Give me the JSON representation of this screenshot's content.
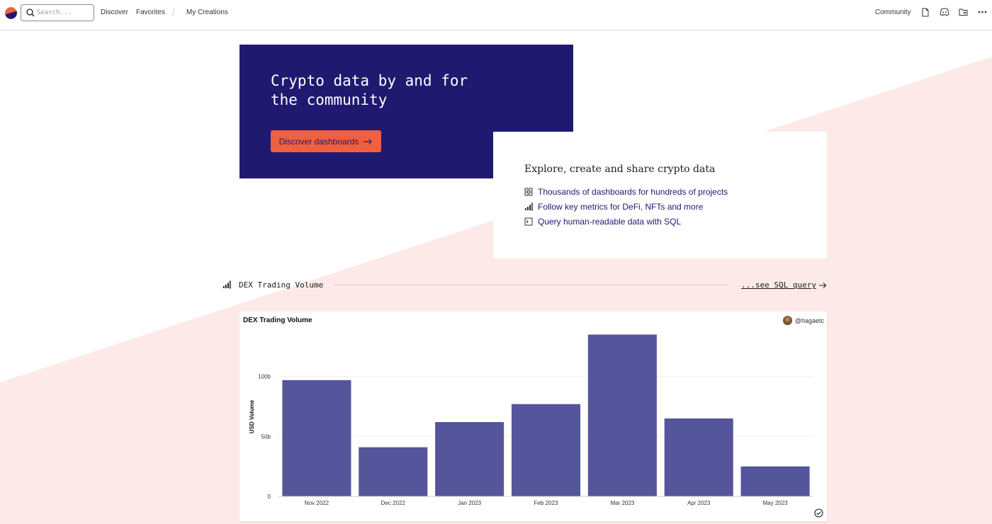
{
  "nav": {
    "search_placeholder": "Search...",
    "links": [
      "Discover",
      "Favorites",
      "My Creations"
    ],
    "community": "Community"
  },
  "hero": {
    "title": "Crypto data by and for the community",
    "button_label": "Discover dashboards"
  },
  "explore": {
    "title": "Explore, create and share crypto data",
    "features": [
      {
        "icon": "grid-icon",
        "label": "Thousands of dashboards for hundreds of projects"
      },
      {
        "icon": "bar-chart-icon",
        "label": "Follow key metrics for DeFi, NFTs and more"
      },
      {
        "icon": "terminal-icon",
        "label": "Query human-readable data with SQL"
      }
    ]
  },
  "section": {
    "title": "DEX Trading Volume",
    "sql_link": "...see SQL query"
  },
  "colors": {
    "hero_bg": "#1f1970",
    "accent": "#f06040",
    "bar": "#55559b",
    "pink_bg": "#fdeae8"
  },
  "chart_data": {
    "type": "bar",
    "title": "DEX Trading Volume",
    "author": "@hagaetc",
    "ylabel": "USD Volume",
    "xlabel": "",
    "categories": [
      "Nov 2022",
      "Dec 2022",
      "Jan 2023",
      "Feb 2023",
      "Mar 2023",
      "Apr 2023",
      "May 2023"
    ],
    "values": [
      97,
      41,
      62,
      77,
      135,
      65,
      25
    ],
    "yticks": [
      {
        "value": 0,
        "label": "0"
      },
      {
        "value": 50,
        "label": "50b"
      },
      {
        "value": 100,
        "label": "100b"
      }
    ],
    "ylim": [
      0,
      140
    ],
    "grid": true
  }
}
